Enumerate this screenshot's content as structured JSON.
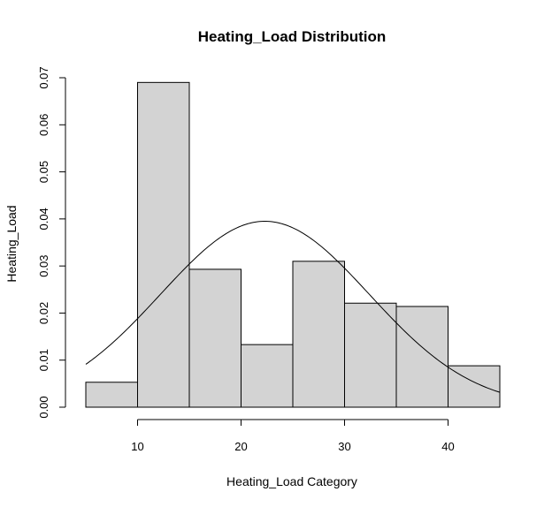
{
  "chart_data": {
    "type": "bar",
    "title": "Heating_Load Distribution",
    "xlabel": "Heating_Load Category",
    "ylabel": "Heating_Load",
    "bins": [
      {
        "x0": 5,
        "x1": 10,
        "density": 0.0053
      },
      {
        "x0": 10,
        "x1": 15,
        "density": 0.069
      },
      {
        "x0": 15,
        "x1": 20,
        "density": 0.0293
      },
      {
        "x0": 20,
        "x1": 25,
        "density": 0.0133
      },
      {
        "x0": 25,
        "x1": 30,
        "density": 0.031
      },
      {
        "x0": 30,
        "x1": 35,
        "density": 0.0221
      },
      {
        "x0": 35,
        "x1": 40,
        "density": 0.0214
      },
      {
        "x0": 40,
        "x1": 45,
        "density": 0.0088
      }
    ],
    "normal_curve": {
      "mean": 22.3,
      "sd": 10.1,
      "x_range": [
        5,
        45
      ]
    },
    "xlim": [
      5,
      45
    ],
    "ylim": [
      0,
      0.07
    ],
    "x_ticks": [
      10,
      20,
      30,
      40
    ],
    "x_tick_labels": [
      "10",
      "20",
      "30",
      "40"
    ],
    "y_ticks": [
      0,
      0.01,
      0.02,
      0.03,
      0.04,
      0.05,
      0.06,
      0.07
    ],
    "y_tick_labels": [
      "0.00",
      "0.01",
      "0.02",
      "0.03",
      "0.04",
      "0.05",
      "0.06",
      "0.07"
    ],
    "grid": false,
    "colors": {
      "bar_fill": "#d3d3d3",
      "bar_stroke": "#000000",
      "curve": "#000000"
    }
  }
}
